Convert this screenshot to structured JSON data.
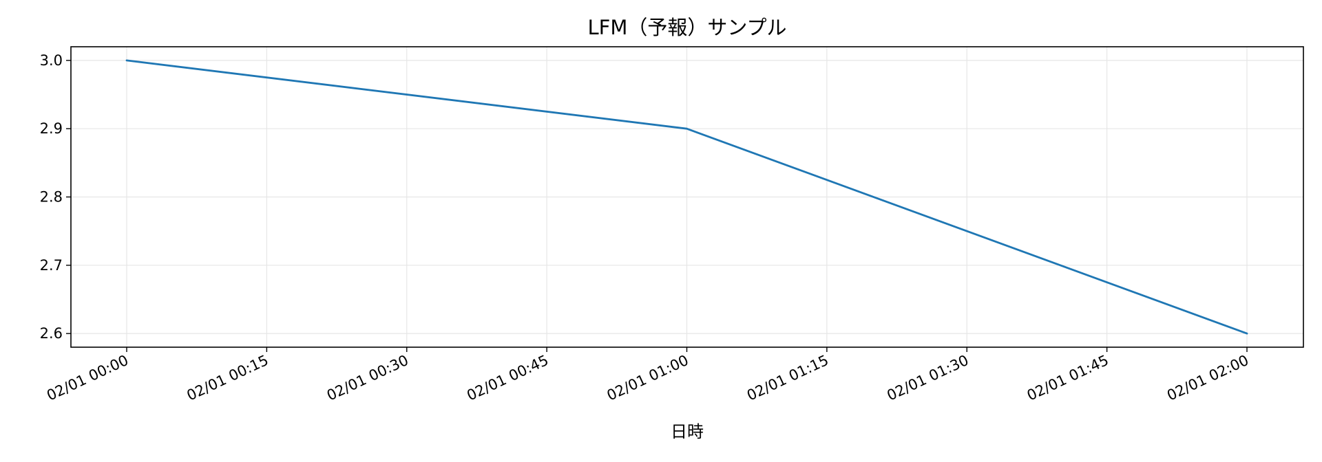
{
  "chart_data": {
    "type": "line",
    "title": "LFM（予報）サンプル",
    "xlabel": "日時",
    "ylabel": "",
    "x": [
      "02/01 00:00",
      "02/01 01:00",
      "02/01 02:00"
    ],
    "series": [
      {
        "values": [
          3.0,
          2.9,
          2.6
        ]
      }
    ],
    "x_ticks": [
      "02/01 00:00",
      "02/01 00:15",
      "02/01 00:30",
      "02/01 00:45",
      "02/01 01:00",
      "02/01 01:15",
      "02/01 01:30",
      "02/01 01:45",
      "02/01 02:00"
    ],
    "y_ticks": [
      "2.6",
      "2.7",
      "2.8",
      "2.9",
      "3.0"
    ],
    "ylim": [
      2.58,
      3.02
    ],
    "grid": true,
    "line_color": "#1f77b4",
    "grid_color": "#e6e6e6"
  }
}
